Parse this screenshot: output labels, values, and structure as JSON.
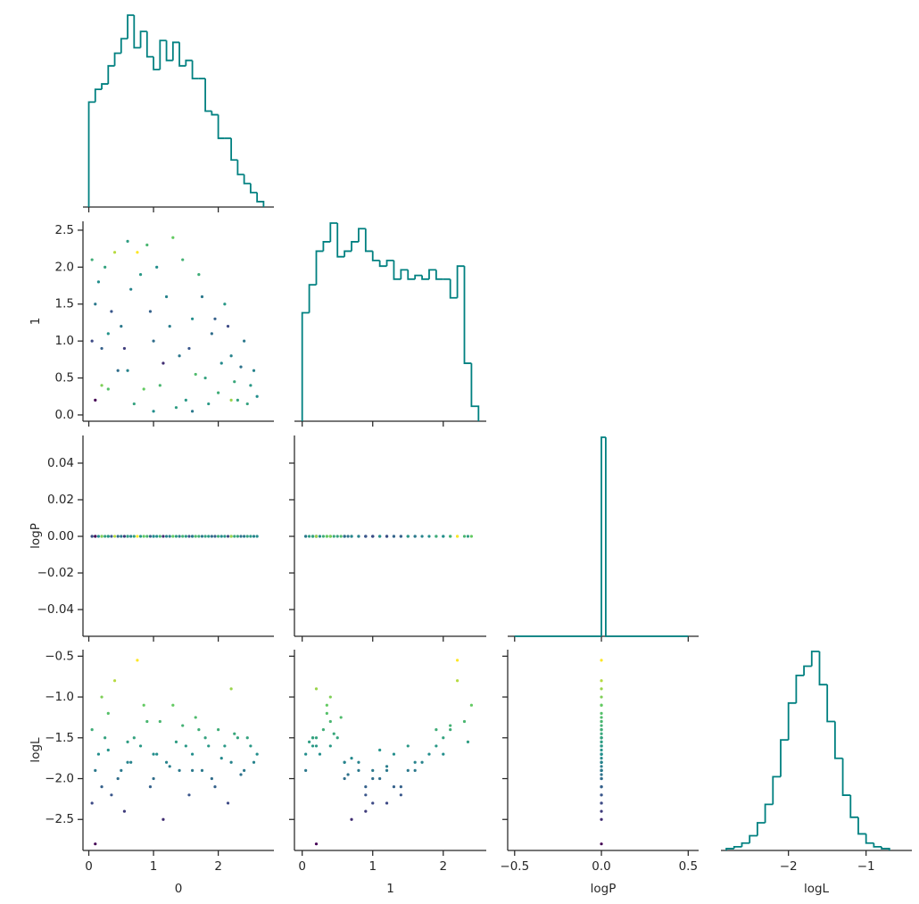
{
  "chart_data": {
    "type": "pair",
    "variables": [
      "0",
      "1",
      "logP",
      "logL"
    ],
    "cmap": "viridis",
    "color_by": "logL",
    "hist_color": "#008080",
    "samples": [
      [
        0.05,
        0.1,
        0.2,
        0.3,
        0.15,
        0.4,
        0.5,
        0.6,
        0.7,
        0.8,
        0.9,
        1.0,
        1.1,
        1.2,
        1.3,
        1.4,
        1.5,
        1.6,
        1.7,
        1.8,
        1.9,
        2.0,
        2.1,
        2.2,
        2.3,
        2.4,
        2.5,
        2.6,
        0.05,
        0.25,
        0.35,
        0.55,
        0.65,
        0.75,
        0.85,
        0.95,
        1.05,
        1.15,
        1.25,
        1.35,
        1.45,
        1.55,
        1.65,
        1.75,
        1.85,
        1.95,
        2.05,
        2.15,
        2.25,
        2.35,
        2.45,
        2.55,
        0.1,
        0.45,
        1.0,
        1.6,
        0.3,
        0.2,
        2.2,
        0.6
      ],
      [
        2.1,
        1.5,
        0.9,
        0.35,
        1.8,
        2.2,
        1.2,
        0.6,
        0.15,
        1.9,
        2.3,
        1.0,
        0.4,
        1.6,
        2.4,
        0.8,
        0.2,
        1.3,
        1.9,
        0.5,
        1.1,
        0.3,
        1.5,
        0.8,
        0.2,
        1.0,
        0.4,
        0.25,
        1.0,
        2.0,
        1.4,
        0.9,
        1.7,
        2.2,
        0.35,
        1.4,
        2.0,
        0.7,
        1.2,
        0.1,
        2.1,
        0.9,
        0.55,
        1.6,
        0.15,
        1.3,
        0.7,
        1.2,
        0.45,
        0.65,
        0.15,
        0.6,
        0.2,
        0.6,
        0.05,
        0.05,
        1.1,
        0.4,
        0.2,
        2.35
      ],
      [
        0,
        0,
        0,
        0,
        0,
        0,
        0,
        0,
        0,
        0,
        0,
        0,
        0,
        0,
        0,
        0,
        0,
        0,
        0,
        0,
        0,
        0,
        0,
        0,
        0,
        0,
        0,
        0,
        0,
        0,
        0,
        0,
        0,
        0,
        0,
        0,
        0,
        0,
        0,
        0,
        0,
        0,
        0,
        0,
        0,
        0,
        0,
        0,
        0,
        0,
        0,
        0,
        0,
        0,
        0,
        0,
        0,
        0,
        0,
        0
      ],
      [
        -1.4,
        -1.9,
        -2.1,
        -1.2,
        -1.7,
        -0.8,
        -1.9,
        -1.8,
        -1.5,
        -1.6,
        -1.3,
        -2.0,
        -1.3,
        -1.8,
        -1.1,
        -1.9,
        -1.6,
        -1.7,
        -1.4,
        -1.5,
        -2.0,
        -1.4,
        -1.6,
        -1.8,
        -1.5,
        -1.9,
        -1.6,
        -1.7,
        -2.3,
        -1.5,
        -2.2,
        -2.4,
        -1.8,
        -0.55,
        -1.1,
        -2.1,
        -1.7,
        -2.5,
        -1.85,
        -1.55,
        -1.35,
        -2.2,
        -1.25,
        -1.9,
        -1.6,
        -2.1,
        -1.75,
        -2.3,
        -1.45,
        -1.95,
        -1.5,
        -1.8,
        -2.8,
        -2.0,
        -1.7,
        -1.9,
        -1.65,
        -1.0,
        -0.9,
        -1.55
      ]
    ],
    "histograms": [
      {
        "bins": [
          0,
          0.1,
          0.2,
          0.3,
          0.4,
          0.5,
          0.6,
          0.7,
          0.8,
          0.9,
          1.0,
          1.1,
          1.2,
          1.3,
          1.4,
          1.5,
          1.6,
          1.7,
          1.8,
          1.9,
          2.0,
          2.1,
          2.2,
          2.3,
          2.4,
          2.5,
          2.6,
          2.7
        ],
        "counts": [
          58,
          65,
          68,
          78,
          85,
          93,
          106,
          88,
          97,
          83,
          76,
          92,
          81,
          91,
          78,
          81,
          71,
          71,
          53,
          51,
          38,
          38,
          26,
          18,
          13,
          8,
          3
        ]
      },
      {
        "bins": [
          0,
          0.1,
          0.2,
          0.3,
          0.4,
          0.5,
          0.6,
          0.7,
          0.8,
          0.9,
          1.0,
          1.1,
          1.2,
          1.3,
          1.4,
          1.5,
          1.6,
          1.7,
          1.8,
          1.9,
          2.0,
          2.1,
          2.2,
          2.3,
          2.4,
          2.5
        ],
        "counts": [
          58,
          73,
          91,
          96,
          106,
          88,
          91,
          96,
          103,
          91,
          86,
          83,
          86,
          76,
          81,
          76,
          78,
          76,
          81,
          76,
          76,
          66,
          83,
          31,
          8
        ]
      },
      {
        "bins": [
          -0.5,
          0,
          0.025,
          0.5
        ],
        "counts": [
          0,
          5000,
          0
        ]
      },
      {
        "bins": [
          -2.8,
          -2.7,
          -2.6,
          -2.5,
          -2.4,
          -2.3,
          -2.2,
          -2.1,
          -2.0,
          -1.9,
          -1.8,
          -1.7,
          -1.6,
          -1.5,
          -1.4,
          -1.3,
          -1.2,
          -1.1,
          -1.0,
          -0.9,
          -0.8,
          -0.7
        ],
        "counts": [
          1,
          2,
          4,
          8,
          15,
          25,
          40,
          60,
          80,
          95,
          100,
          108,
          90,
          70,
          50,
          30,
          18,
          9,
          4,
          2,
          1
        ]
      }
    ],
    "xaxes": [
      {
        "lim": [
          -0.09,
          2.86
        ],
        "ticks": [
          0,
          1,
          2
        ]
      },
      {
        "lim": [
          -0.11,
          2.61
        ],
        "ticks": [
          0,
          1,
          2
        ]
      },
      {
        "lim": [
          -0.54,
          0.56
        ],
        "ticks": [
          {
            "value": -0.5,
            "label": "−0.5"
          },
          {
            "value": 0,
            "label": "0.0"
          },
          {
            "value": 0.5,
            "label": "0.5"
          }
        ]
      },
      {
        "lim": [
          -2.87,
          -0.41
        ],
        "ticks": [
          {
            "value": -2,
            "label": "−2"
          },
          {
            "value": -1,
            "label": "−1"
          }
        ]
      }
    ],
    "yaxes": [
      {
        "lim": [
          -0.085,
          2.62
        ],
        "ticks": [
          {
            "value": 0,
            "label": "0.0"
          },
          {
            "value": 0.5,
            "label": "0.5"
          },
          {
            "value": 1,
            "label": "1.0"
          },
          {
            "value": 1.5,
            "label": "1.5"
          },
          {
            "value": 2,
            "label": "2.0"
          },
          {
            "value": 2.5,
            "label": "2.5"
          }
        ]
      },
      {
        "lim": [
          -0.0546,
          0.0551
        ],
        "ticks": [
          {
            "value": -0.04,
            "label": "−0.04"
          },
          {
            "value": -0.02,
            "label": "−0.02"
          },
          {
            "value": 0,
            "label": "0.00"
          },
          {
            "value": 0.02,
            "label": "0.02"
          },
          {
            "value": 0.04,
            "label": "0.04"
          }
        ]
      },
      {
        "lim": [
          -2.88,
          -0.42
        ],
        "ticks": [
          {
            "value": -2.5,
            "label": "−2.5"
          },
          {
            "value": -2,
            "label": "−2.0"
          },
          {
            "value": -1.5,
            "label": "−1.5"
          },
          {
            "value": -1,
            "label": "−1.0"
          },
          {
            "value": -0.5,
            "label": "−0.5"
          }
        ]
      }
    ]
  }
}
